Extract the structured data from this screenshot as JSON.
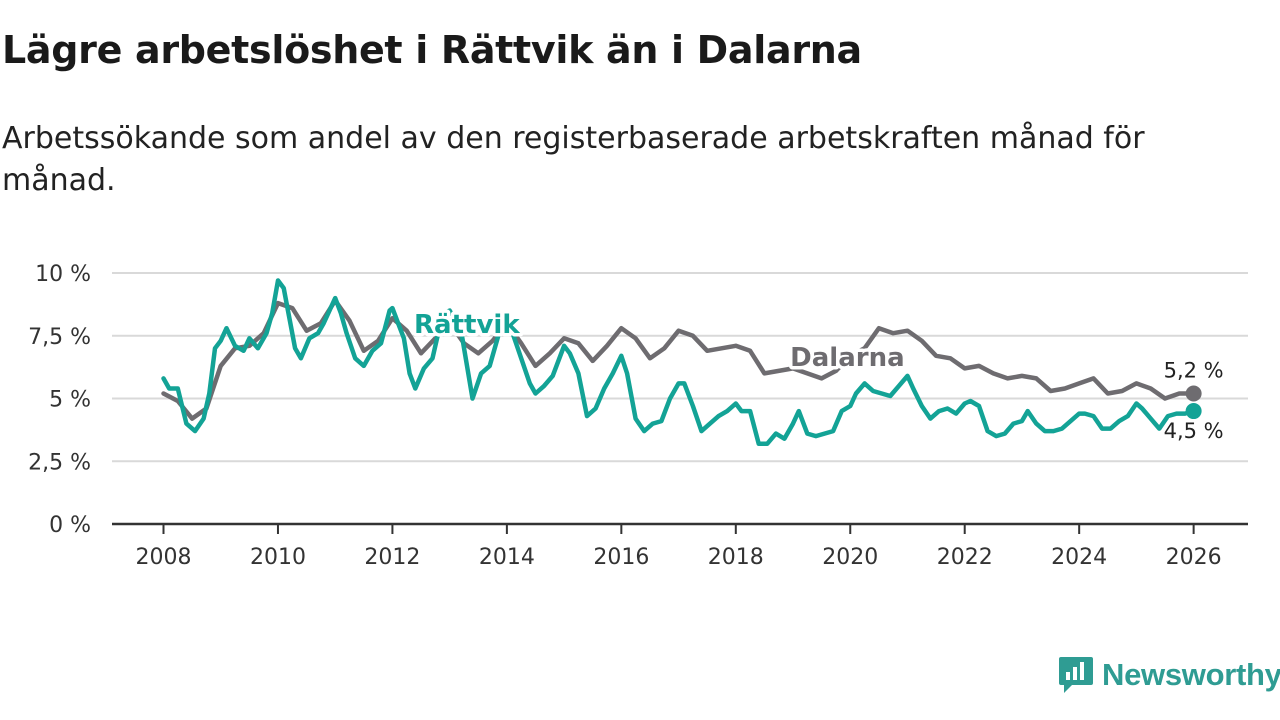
{
  "title": "Lägre arbetslöshet i Rättvik än i Dalarna",
  "subtitle": "Arbetssökande som andel av den registerbaserade arbetskraften månad för månad.",
  "branding": {
    "name": "Newsworthy",
    "color": "#2f9c93"
  },
  "chart_data": {
    "type": "line",
    "xlabel": "",
    "ylabel": "",
    "xlim": [
      2007.1,
      2026.95
    ],
    "ylim": [
      0,
      10
    ],
    "x_ticks": [
      2008,
      2010,
      2012,
      2014,
      2016,
      2018,
      2020,
      2022,
      2024,
      2026
    ],
    "x_tick_labels": [
      "2008",
      "2010",
      "2012",
      "2014",
      "2016",
      "2018",
      "2020",
      "2022",
      "2024",
      "2026"
    ],
    "y_ticks": [
      0,
      2.5,
      5,
      7.5,
      10
    ],
    "y_tick_labels": [
      "0 %",
      "2,5 %",
      "5 %",
      "7,5 %",
      "10 %"
    ],
    "grid": true,
    "series": [
      {
        "name": "Dalarna",
        "color": "#6e6c70",
        "end_label": "5,2 %",
        "x": [
          2008.0,
          2008.25,
          2008.5,
          2008.75,
          2009.0,
          2009.25,
          2009.5,
          2009.75,
          2010.0,
          2010.25,
          2010.5,
          2010.75,
          2011.0,
          2011.25,
          2011.5,
          2011.75,
          2012.0,
          2012.25,
          2012.5,
          2012.75,
          2013.0,
          2013.25,
          2013.5,
          2013.75,
          2014.0,
          2014.25,
          2014.5,
          2014.75,
          2015.0,
          2015.25,
          2015.5,
          2015.75,
          2016.0,
          2016.25,
          2016.5,
          2016.75,
          2017.0,
          2017.25,
          2017.5,
          2017.75,
          2018.0,
          2018.25,
          2018.5,
          2018.75,
          2019.0,
          2019.25,
          2019.5,
          2019.75,
          2020.0,
          2020.25,
          2020.5,
          2020.75,
          2021.0,
          2021.25,
          2021.5,
          2021.75,
          2022.0,
          2022.25,
          2022.5,
          2022.75,
          2023.0,
          2023.25,
          2023.5,
          2023.75,
          2024.0,
          2024.25,
          2024.5,
          2024.75,
          2025.0,
          2025.25,
          2025.5,
          2025.75,
          2026.0
        ],
        "values": [
          5.2,
          4.9,
          4.2,
          4.6,
          6.3,
          7.0,
          7.1,
          7.6,
          8.8,
          8.6,
          7.7,
          8.0,
          8.9,
          8.1,
          6.9,
          7.3,
          8.2,
          7.7,
          6.8,
          7.4,
          8.0,
          7.2,
          6.8,
          7.3,
          8.0,
          7.2,
          6.3,
          6.8,
          7.4,
          7.2,
          6.5,
          7.1,
          7.8,
          7.4,
          6.6,
          7.0,
          7.7,
          7.5,
          6.9,
          7.0,
          7.1,
          6.9,
          6.0,
          6.1,
          6.2,
          6.0,
          5.8,
          6.1,
          6.7,
          7.0,
          7.8,
          7.6,
          7.7,
          7.3,
          6.7,
          6.6,
          6.2,
          6.3,
          6.0,
          5.8,
          5.9,
          5.8,
          5.3,
          5.4,
          5.6,
          5.8,
          5.2,
          5.3,
          5.6,
          5.4,
          5.0,
          5.2,
          5.2
        ]
      },
      {
        "name": "Rättvik",
        "color": "#13a396",
        "end_label": "4,5 %",
        "x": [
          2008.0,
          2008.1,
          2008.25,
          2008.4,
          2008.55,
          2008.7,
          2008.8,
          2008.9,
          2009.0,
          2009.1,
          2009.25,
          2009.4,
          2009.5,
          2009.65,
          2009.8,
          2009.9,
          2010.0,
          2010.1,
          2010.2,
          2010.3,
          2010.4,
          2010.55,
          2010.7,
          2010.8,
          2010.9,
          2011.0,
          2011.1,
          2011.2,
          2011.35,
          2011.5,
          2011.65,
          2011.8,
          2011.95,
          2012.0,
          2012.1,
          2012.2,
          2012.3,
          2012.4,
          2012.55,
          2012.7,
          2012.8,
          2012.9,
          2013.0,
          2013.2,
          2013.4,
          2013.55,
          2013.7,
          2013.85,
          2014.0,
          2014.1,
          2014.25,
          2014.4,
          2014.5,
          2014.65,
          2014.8,
          2015.0,
          2015.1,
          2015.25,
          2015.4,
          2015.55,
          2015.7,
          2015.85,
          2016.0,
          2016.1,
          2016.25,
          2016.4,
          2016.55,
          2016.7,
          2016.85,
          2017.0,
          2017.1,
          2017.25,
          2017.4,
          2017.55,
          2017.7,
          2017.85,
          2018.0,
          2018.1,
          2018.25,
          2018.4,
          2018.55,
          2018.7,
          2018.85,
          2019.0,
          2019.1,
          2019.25,
          2019.4,
          2019.55,
          2019.7,
          2019.85,
          2020.0,
          2020.1,
          2020.25,
          2020.4,
          2020.55,
          2020.7,
          2020.85,
          2021.0,
          2021.1,
          2021.25,
          2021.4,
          2021.55,
          2021.7,
          2021.85,
          2022.0,
          2022.1,
          2022.25,
          2022.4,
          2022.55,
          2022.7,
          2022.85,
          2023.0,
          2023.1,
          2023.25,
          2023.4,
          2023.55,
          2023.7,
          2023.85,
          2024.0,
          2024.1,
          2024.25,
          2024.4,
          2024.55,
          2024.7,
          2024.85,
          2025.0,
          2025.1,
          2025.25,
          2025.4,
          2025.55,
          2025.7,
          2025.85,
          2026.0
        ],
        "values": [
          5.8,
          5.4,
          5.4,
          4.0,
          3.7,
          4.2,
          5.2,
          7.0,
          7.3,
          7.8,
          7.1,
          6.9,
          7.4,
          7.0,
          7.6,
          8.4,
          9.7,
          9.4,
          8.2,
          7.0,
          6.6,
          7.4,
          7.6,
          8.0,
          8.5,
          9.0,
          8.4,
          7.6,
          6.6,
          6.3,
          6.9,
          7.2,
          8.5,
          8.6,
          8.0,
          7.4,
          6.0,
          5.4,
          6.2,
          6.6,
          7.6,
          8.4,
          8.5,
          7.7,
          5.0,
          6.0,
          6.3,
          7.5,
          8.1,
          7.6,
          6.6,
          5.6,
          5.2,
          5.5,
          5.9,
          7.1,
          6.8,
          6.0,
          4.3,
          4.6,
          5.4,
          6.0,
          6.7,
          6.0,
          4.2,
          3.7,
          4.0,
          4.1,
          5.0,
          5.6,
          5.6,
          4.7,
          3.7,
          4.0,
          4.3,
          4.5,
          4.8,
          4.5,
          4.5,
          3.2,
          3.2,
          3.6,
          3.4,
          4.0,
          4.5,
          3.6,
          3.5,
          3.6,
          3.7,
          4.5,
          4.7,
          5.2,
          5.6,
          5.3,
          5.2,
          5.1,
          5.5,
          5.9,
          5.4,
          4.7,
          4.2,
          4.5,
          4.6,
          4.4,
          4.8,
          4.9,
          4.7,
          3.7,
          3.5,
          3.6,
          4.0,
          4.1,
          4.5,
          4.0,
          3.7,
          3.7,
          3.8,
          4.1,
          4.4,
          4.4,
          4.3,
          3.8,
          3.8,
          4.1,
          4.3,
          4.8,
          4.6,
          4.2,
          3.8,
          4.3,
          4.4,
          4.4,
          4.5
        ]
      }
    ]
  }
}
